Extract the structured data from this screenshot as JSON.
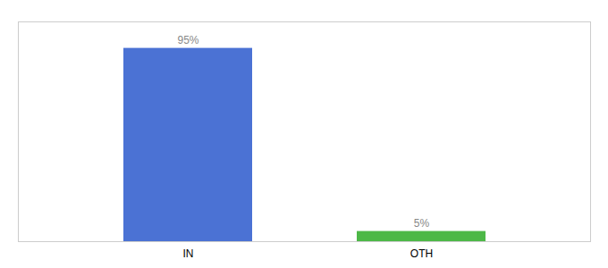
{
  "chart_data": {
    "type": "bar",
    "categories": [
      "IN",
      "OTH"
    ],
    "values": [
      95,
      5
    ],
    "colors": [
      "#4b72d4",
      "#4db847"
    ],
    "value_labels": [
      "95%",
      "5%"
    ],
    "data_labels": true,
    "ylim": [
      0,
      108
    ],
    "tick_labels": "x",
    "grid": false
  }
}
